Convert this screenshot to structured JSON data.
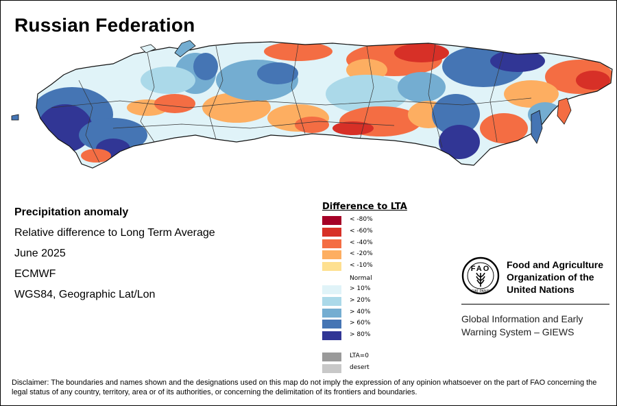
{
  "title": "Russian Federation",
  "info": {
    "heading": "Precipitation anomaly",
    "subtitle": "Relative difference to Long Term Average",
    "period": "June 2025",
    "source": "ECMWF",
    "projection": "WGS84, Geographic Lat/Lon"
  },
  "legend": {
    "title": "Difference to LTA",
    "items": [
      {
        "label": "< -80%",
        "color": "#a50026"
      },
      {
        "label": "< -60%",
        "color": "#d73027"
      },
      {
        "label": "< -40%",
        "color": "#f46d43"
      },
      {
        "label": "< -20%",
        "color": "#fdae61"
      },
      {
        "label": "< -10%",
        "color": "#fee090"
      }
    ],
    "normal": "Normal",
    "wet_items": [
      {
        "label": "> 10%",
        "color": "#e0f3f8"
      },
      {
        "label": "> 20%",
        "color": "#abd9e9"
      },
      {
        "label": "> 40%",
        "color": "#74add1"
      },
      {
        "label": "> 60%",
        "color": "#4575b4"
      },
      {
        "label": "> 80%",
        "color": "#313695"
      }
    ],
    "extra_items": [
      {
        "label": "LTA=0",
        "color": "#9a9a9a"
      },
      {
        "label": "desert",
        "color": "#c8c8c8"
      }
    ]
  },
  "fao": {
    "logo_letters": "FAO",
    "logo_motto": "FIAT PANIS",
    "name_line1": "Food and Agriculture",
    "name_line2": "Organization of the",
    "name_line3": "United Nations",
    "system_line1": "Global Information and Early",
    "system_line2": "Warning System – GIEWS"
  },
  "disclaimer": "Disclaimer: The boundaries and names shown and the designations used on this map do not imply the expression of any opinion whatsoever on the part of FAO concerning the legal status of any country, territory, area or of its authorities, or concerning the delimitation of its frontiers and boundaries."
}
